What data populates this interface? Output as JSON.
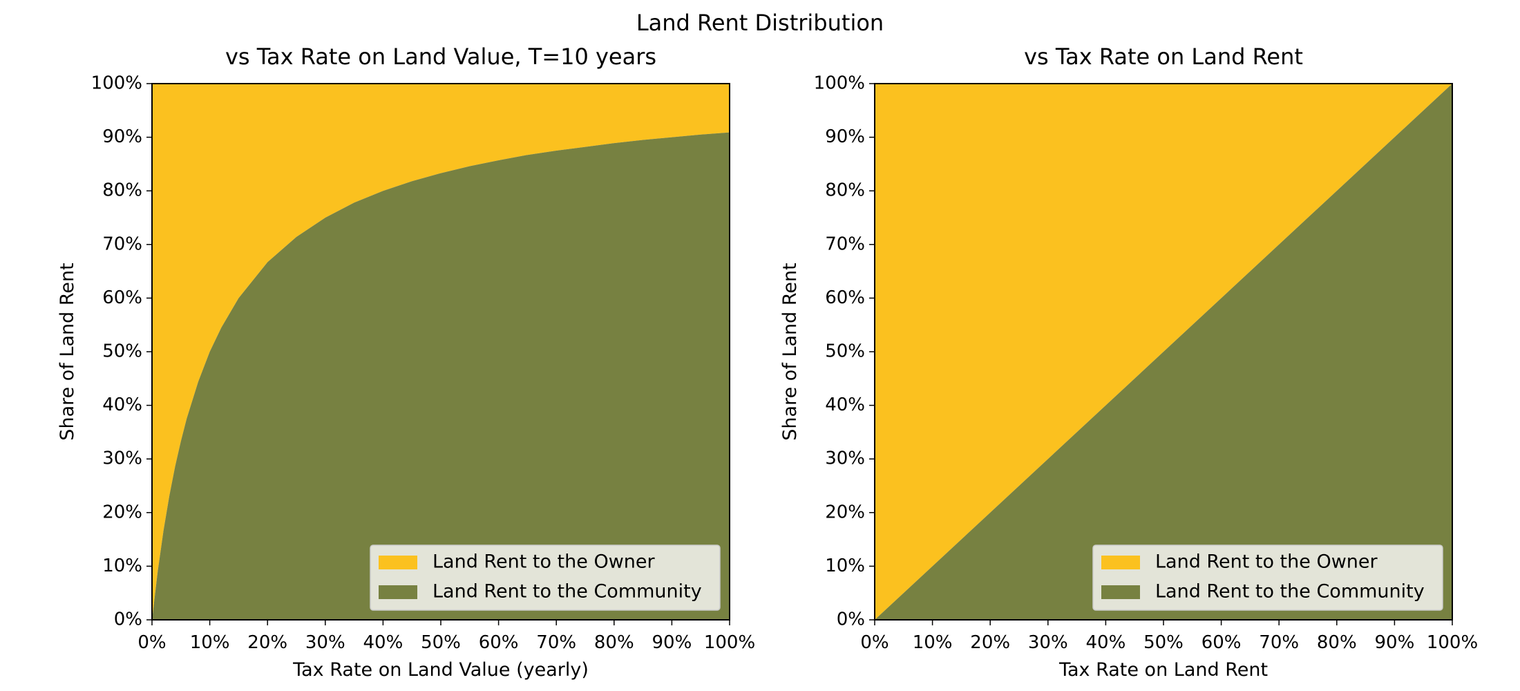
{
  "figure": {
    "suptitle": "Land Rent Distribution"
  },
  "colors": {
    "owner": "#fbc11f",
    "community": "#778141",
    "legend_bg": "#e3e4d8",
    "legend_border": "#cccccc"
  },
  "chart_data": [
    {
      "type": "area",
      "stacked": true,
      "title": "vs Tax Rate on Land Value, T=10 years",
      "xlabel": "Tax Rate on Land Value (yearly)",
      "ylabel": "Share of Land Rent",
      "xlim": [
        0,
        100
      ],
      "ylim": [
        0,
        100
      ],
      "x_ticks": [
        "0%",
        "10%",
        "20%",
        "30%",
        "40%",
        "50%",
        "60%",
        "70%",
        "80%",
        "90%",
        "100%"
      ],
      "y_ticks": [
        "0%",
        "10%",
        "20%",
        "30%",
        "40%",
        "50%",
        "60%",
        "70%",
        "80%",
        "90%",
        "100%"
      ],
      "x": [
        0,
        1,
        2,
        3,
        4,
        5,
        6,
        8,
        10,
        12,
        15,
        20,
        25,
        30,
        35,
        40,
        45,
        50,
        55,
        60,
        65,
        70,
        75,
        80,
        85,
        90,
        95,
        100
      ],
      "series": [
        {
          "name": "Land Rent to the Community",
          "values": [
            0,
            9.1,
            16.7,
            23.1,
            28.6,
            33.3,
            37.5,
            44.4,
            50.0,
            54.5,
            60.0,
            66.7,
            71.4,
            75.0,
            77.8,
            80.0,
            81.8,
            83.3,
            84.6,
            85.7,
            86.7,
            87.5,
            88.2,
            88.9,
            89.5,
            90.0,
            90.5,
            90.9
          ]
        },
        {
          "name": "Land Rent to the Owner",
          "values": [
            100,
            90.9,
            83.3,
            76.9,
            71.4,
            66.7,
            62.5,
            55.6,
            50.0,
            45.5,
            40.0,
            33.3,
            28.6,
            25.0,
            22.2,
            20.0,
            18.2,
            16.7,
            15.4,
            14.3,
            13.3,
            12.5,
            11.8,
            11.1,
            10.5,
            10.0,
            9.5,
            9.1
          ]
        }
      ],
      "legend": {
        "loc": "lower right",
        "entries": [
          "Land Rent to the Owner",
          "Land Rent to the Community"
        ]
      },
      "grid": false
    },
    {
      "type": "area",
      "stacked": true,
      "title": "vs Tax Rate on Land Rent",
      "xlabel": "Tax Rate on Land Rent",
      "ylabel": "Share of Land Rent",
      "xlim": [
        0,
        100
      ],
      "ylim": [
        0,
        100
      ],
      "x_ticks": [
        "0%",
        "10%",
        "20%",
        "30%",
        "40%",
        "50%",
        "60%",
        "70%",
        "80%",
        "90%",
        "100%"
      ],
      "y_ticks": [
        "0%",
        "10%",
        "20%",
        "30%",
        "40%",
        "50%",
        "60%",
        "70%",
        "80%",
        "90%",
        "100%"
      ],
      "x": [
        0,
        100
      ],
      "series": [
        {
          "name": "Land Rent to the Community",
          "values": [
            0,
            100
          ]
        },
        {
          "name": "Land Rent to the Owner",
          "values": [
            100,
            0
          ]
        }
      ],
      "legend": {
        "loc": "lower right",
        "entries": [
          "Land Rent to the Owner",
          "Land Rent to the Community"
        ]
      },
      "grid": false
    }
  ]
}
